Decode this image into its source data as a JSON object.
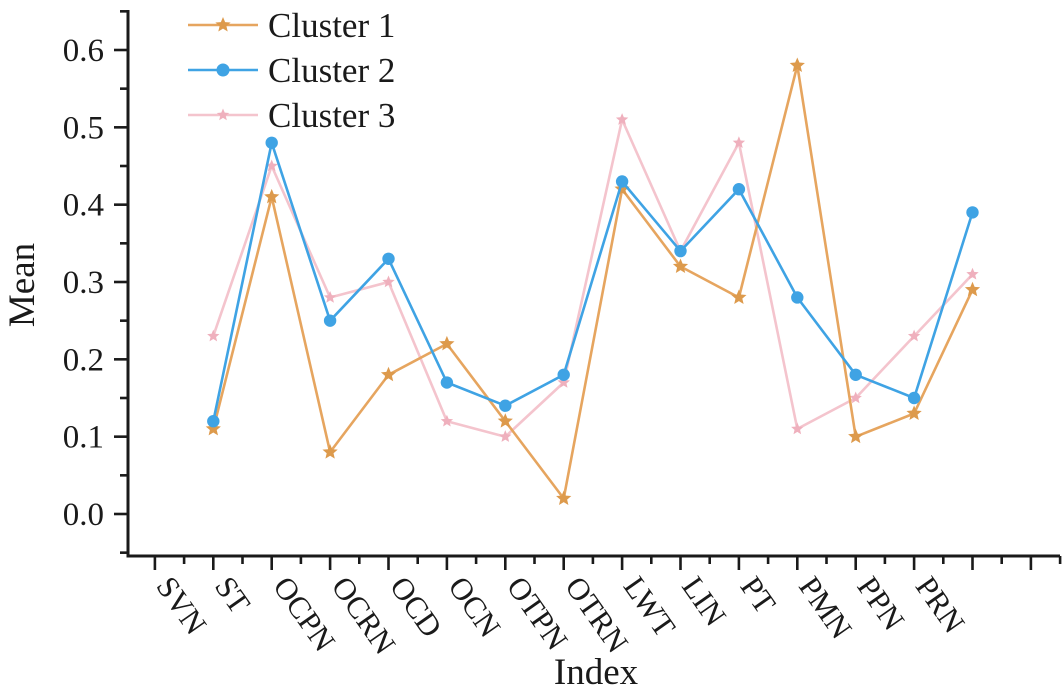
{
  "figure": {
    "background": "#ffffff",
    "axis_color": "#1a1a1a",
    "text_color": "#1a1a1a"
  },
  "chart_data": {
    "type": "line",
    "title": "",
    "xlabel": "Index",
    "ylabel": "Mean",
    "categories": [
      "SVN",
      "ST",
      "OCPN",
      "OCRN",
      "OCD",
      "OCN",
      "OTPN",
      "OTRN",
      "LWT",
      "LIN",
      "PT",
      "PMN",
      "PPN",
      "PRN"
    ],
    "series": [
      {
        "name": "Cluster 1",
        "color": "#E6A55F",
        "marker": "star",
        "marker_color": "#DD9A4C",
        "values": [
          0.11,
          0.41,
          0.08,
          0.18,
          0.22,
          0.12,
          0.02,
          0.42,
          0.32,
          0.28,
          0.58,
          0.1,
          0.13,
          0.29
        ]
      },
      {
        "name": "Cluster 2",
        "color": "#3FA3E4",
        "marker": "circle",
        "marker_color": "#3FA3E4",
        "values": [
          0.12,
          0.48,
          0.25,
          0.33,
          0.17,
          0.14,
          0.18,
          0.43,
          0.34,
          0.42,
          0.28,
          0.18,
          0.15,
          0.39
        ]
      },
      {
        "name": "Cluster 3",
        "color": "#F4C4CD",
        "marker": "star",
        "marker_color": "#EFB0BD",
        "values": [
          0.23,
          0.45,
          0.28,
          0.3,
          0.12,
          0.1,
          0.17,
          0.51,
          0.34,
          0.48,
          0.11,
          0.15,
          0.23,
          0.31
        ]
      }
    ],
    "y_ticks": [
      "0.0",
      "0.1",
      "0.2",
      "0.3",
      "0.4",
      "0.5",
      "0.6"
    ],
    "y_tick_values": [
      0.0,
      0.1,
      0.2,
      0.3,
      0.4,
      0.5,
      0.6
    ],
    "ylim": [
      -0.055,
      0.655
    ],
    "x_tick_rotation": 55,
    "legend_position": "top-left",
    "grid": false
  }
}
